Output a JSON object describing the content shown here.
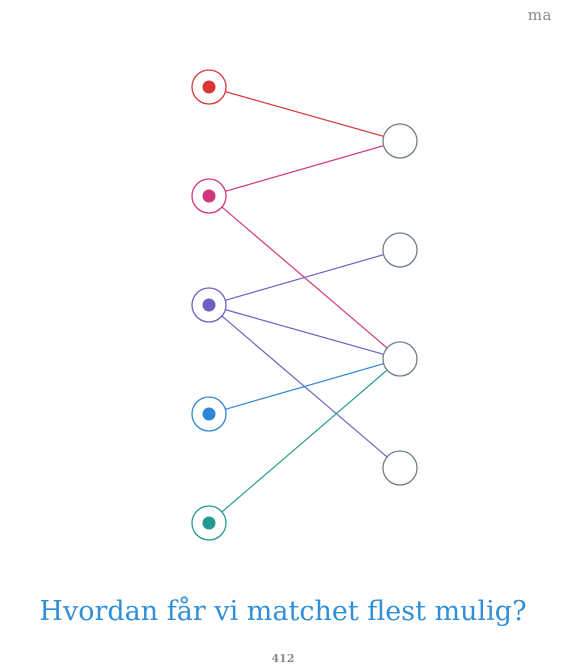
{
  "header": {
    "mark": "ma"
  },
  "graph": {
    "left_nodes": [
      {
        "id": "L1",
        "color": "#d93636"
      },
      {
        "id": "L2",
        "color": "#d0357a"
      },
      {
        "id": "L3",
        "color": "#6a62c2"
      },
      {
        "id": "L4",
        "color": "#2d86d6"
      },
      {
        "id": "L5",
        "color": "#24998f"
      }
    ],
    "right_nodes": [
      {
        "id": "R1"
      },
      {
        "id": "R2"
      },
      {
        "id": "R3"
      },
      {
        "id": "R4"
      }
    ],
    "right_node_color": "#6f7e86",
    "edges": [
      {
        "from": "L1",
        "to": "R1"
      },
      {
        "from": "L2",
        "to": "R1"
      },
      {
        "from": "L2",
        "to": "R3"
      },
      {
        "from": "L3",
        "to": "R2"
      },
      {
        "from": "L3",
        "to": "R3"
      },
      {
        "from": "L3",
        "to": "R4"
      },
      {
        "from": "L4",
        "to": "R3"
      },
      {
        "from": "L5",
        "to": "R3"
      }
    ]
  },
  "caption": {
    "question": "Hvordan får vi matchet flest mulig?"
  },
  "footer": {
    "page_number": "412"
  }
}
